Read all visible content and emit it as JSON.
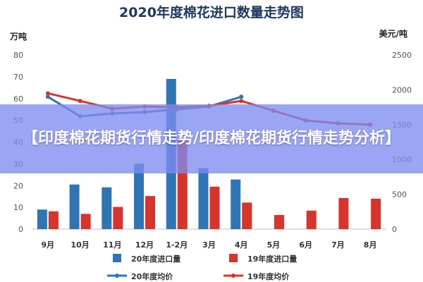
{
  "chart_data": {
    "type": "bar",
    "title": "2020年度棉花进口数量走势图",
    "ylabel_left": "万吨",
    "ylabel_right": "美元/吨",
    "ylim_left": [
      0,
      80
    ],
    "ylim_right": [
      0,
      2500
    ],
    "yticks_left": [
      "0",
      "10",
      "20",
      "30",
      "40",
      "50",
      "60",
      "70",
      "80"
    ],
    "yticks_right": [
      "0",
      "500",
      "1000",
      "1500",
      "2000",
      "2500"
    ],
    "categories": [
      "9月",
      "10月",
      "11月",
      "12月",
      "1-2月",
      "3月",
      "4月",
      "5月",
      "6月",
      "7月",
      "8月"
    ],
    "series": [
      {
        "name": "20年度进口量",
        "type": "bar",
        "axis": "left",
        "color": "#2e75b6",
        "values": [
          9,
          20.5,
          19.2,
          30,
          69,
          28,
          22.8,
          null,
          null,
          null,
          null
        ]
      },
      {
        "name": "19年度进口量",
        "type": "bar",
        "axis": "left",
        "color": "#d9342b",
        "values": [
          8.2,
          7,
          10.2,
          15.2,
          41,
          19.5,
          12.2,
          6.5,
          8.5,
          14.3,
          14
        ]
      },
      {
        "name": "20年度均价",
        "type": "line",
        "axis": "right",
        "color": "#2e75b6",
        "values": [
          1900,
          1620,
          1660,
          1680,
          1720,
          1760,
          1900,
          null,
          null,
          null,
          null
        ]
      },
      {
        "name": "19年度均价",
        "type": "line",
        "axis": "right",
        "color": "#d9342b",
        "values": [
          1950,
          1840,
          1730,
          1760,
          1750,
          1770,
          1840,
          1700,
          1560,
          1520,
          1500
        ]
      }
    ],
    "legend_position": "bottom",
    "grid": false
  },
  "overlay": {
    "text": "【印度棉花期货行情走势/印度棉花期货行情走势分析】"
  }
}
